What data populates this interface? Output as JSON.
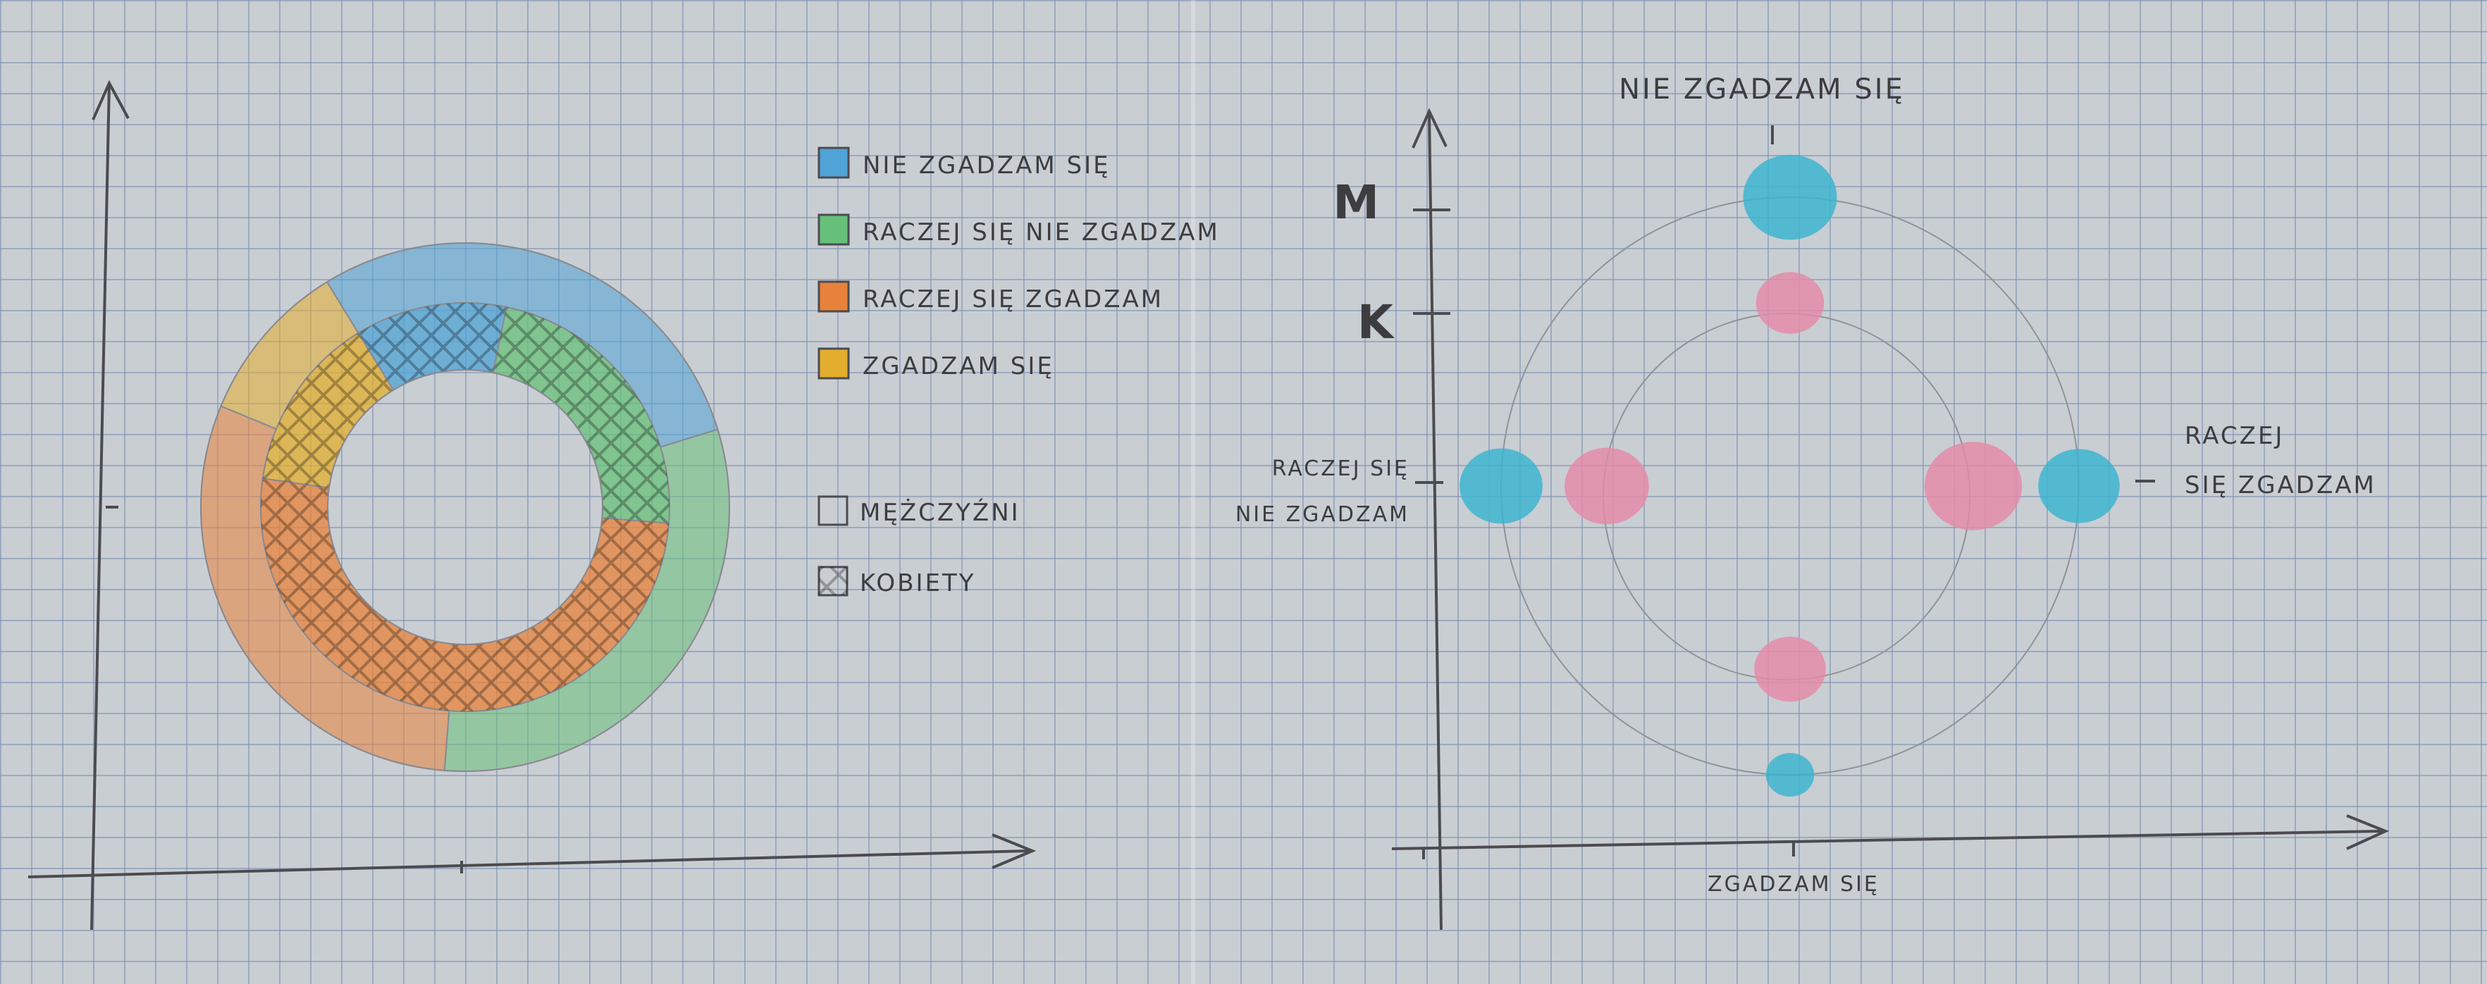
{
  "legend": [
    {
      "label": "NIE ZGADZAM SIĘ",
      "color": "#4fa3d6"
    },
    {
      "label": "RACZEJ SIĘ NIE ZGADZAM",
      "color": "#67c07a"
    },
    {
      "label": "RACZEJ SIĘ ZGADZAM",
      "color": "#e8823a"
    },
    {
      "label": "ZGADZAM SIĘ",
      "color": "#e3ad2e"
    }
  ],
  "legend_groups": [
    {
      "label": "MĘŻCZYŹNI",
      "pattern": "plain"
    },
    {
      "label": "KOBIETY",
      "pattern": "hatched"
    }
  ],
  "chart_data": [
    {
      "type": "pie",
      "variant": "nested-donut",
      "categories": [
        "NIE ZGADZAM SIĘ",
        "RACZEJ SIĘ NIE ZGADZAM",
        "RACZEJ SIĘ ZGADZAM",
        "ZGADZAM SIĘ"
      ],
      "series": [
        {
          "name": "MĘŻCZYŹNI",
          "ring": "outer",
          "values": [
            29,
            31,
            30,
            10
          ]
        },
        {
          "name": "KOBIETY",
          "ring": "inner",
          "values": [
            12,
            23,
            51,
            14
          ]
        }
      ],
      "colors": [
        "#4fa3d6",
        "#67c07a",
        "#e8823a",
        "#e3ad2e"
      ]
    },
    {
      "type": "scatter",
      "variant": "radial-bubble",
      "axis_labels": {
        "top": "NIE ZGADZAM SIĘ",
        "right": "RACZEJ SIĘ ZGADZAM",
        "bottom": "ZGADZAM SIĘ",
        "left": "RACZEJ SIĘ NIE ZGADZAM"
      },
      "y_ticks": [
        "M",
        "K"
      ],
      "series": [
        {
          "name": "M",
          "color": "#39b4cf",
          "values": {
            "NIE ZGADZAM SIĘ": 29,
            "RACZEJ SIĘ ZGADZAM": 20,
            "ZGADZAM SIĘ": 4,
            "RACZEJ SIĘ NIE ZGADZAM": 21
          }
        },
        {
          "name": "K",
          "color": "#e58aa7",
          "values": {
            "NIE ZGADZAM SIĘ": 12,
            "RACZEJ SIĘ ZGADZAM": 32,
            "ZGADZAM SIĘ": 14,
            "RACZEJ SIĘ NIE ZGADZAM": 22
          }
        }
      ]
    }
  ]
}
